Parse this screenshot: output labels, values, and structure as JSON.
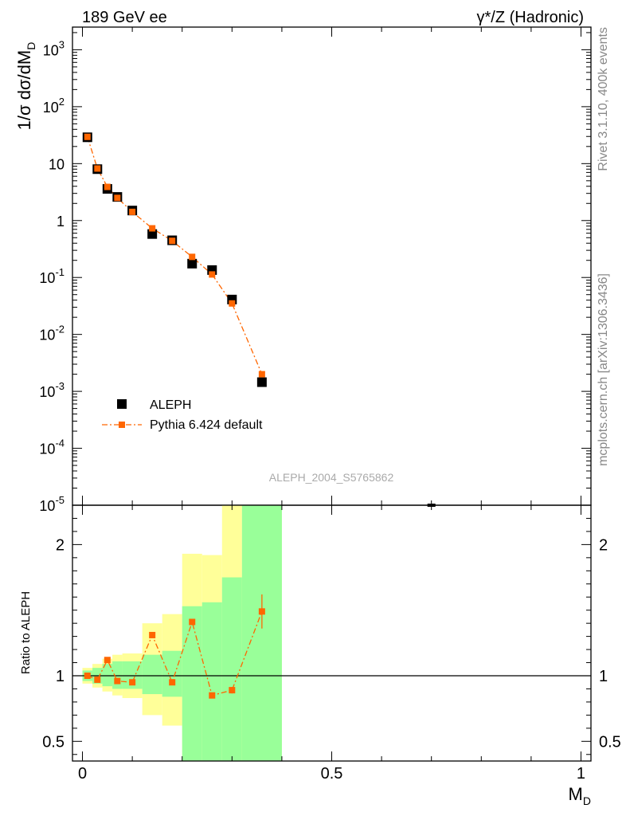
{
  "header": {
    "energy_label": "189 GeV ee",
    "process_label": "γ*/Z (Hadronic)"
  },
  "side_text": {
    "rivet": "Rivet 3.1.10,  400k events",
    "mcplots": "mcplots.cern.ch [arXiv:1306.3436]"
  },
  "watermark": "ALEPH_2004_S5765862",
  "colors": {
    "data": "#000000",
    "mc": "#ff6600",
    "band_inner": "#99ff99",
    "band_outer": "#ffff99"
  },
  "chart_data": [
    {
      "type": "scatter",
      "panel": "main",
      "ylabel": "1/σ  dσ/dM_D",
      "yscale": "log",
      "ylim": [
        1e-05,
        2500
      ],
      "xlim": [
        -0.02,
        1.02
      ],
      "y_tick_labels": [
        "10^3",
        "10^2",
        "10",
        "1",
        "10^-1",
        "10^-2",
        "10^-3",
        "10^-4",
        "10^-5"
      ],
      "legend_position": "bottom-left",
      "series": [
        {
          "name": "ALEPH",
          "marker": "square",
          "x": [
            0.01,
            0.03,
            0.05,
            0.07,
            0.1,
            0.14,
            0.18,
            0.22,
            0.26,
            0.3,
            0.36,
            0.7
          ],
          "y": [
            29,
            8.0,
            3.6,
            2.6,
            1.5,
            0.58,
            0.45,
            0.175,
            0.135,
            0.041,
            0.00145,
            1e-05
          ]
        },
        {
          "name": "Pythia 6.424 default",
          "marker": "square-dashdot",
          "x": [
            0.01,
            0.03,
            0.05,
            0.07,
            0.1,
            0.14,
            0.18,
            0.22,
            0.26,
            0.3,
            0.36
          ],
          "y": [
            29.5,
            8.2,
            3.9,
            2.5,
            1.42,
            0.73,
            0.44,
            0.23,
            0.113,
            0.035,
            0.002
          ]
        }
      ]
    },
    {
      "type": "scatter",
      "panel": "ratio",
      "ylabel": "Ratio to ALEPH",
      "xlabel": "M_D",
      "ylim": [
        0.35,
        2.3
      ],
      "xlim": [
        -0.02,
        1.02
      ],
      "y_ticks": [
        0.5,
        1,
        2
      ],
      "y_tick_labels": [
        "0.5",
        "1",
        "2"
      ],
      "x_ticks": [
        0,
        0.5,
        1
      ],
      "x_tick_labels": [
        "0",
        "0.5",
        "1"
      ],
      "reference_line": 1,
      "bands": [
        {
          "x0": 0.0,
          "x1": 0.02,
          "inner": [
            0.96,
            1.04
          ],
          "outer": [
            0.94,
            1.06
          ]
        },
        {
          "x0": 0.02,
          "x1": 0.04,
          "inner": [
            0.94,
            1.06
          ],
          "outer": [
            0.91,
            1.09
          ]
        },
        {
          "x0": 0.04,
          "x1": 0.06,
          "inner": [
            0.92,
            1.09
          ],
          "outer": [
            0.88,
            1.13
          ]
        },
        {
          "x0": 0.06,
          "x1": 0.08,
          "inner": [
            0.9,
            1.11
          ],
          "outer": [
            0.85,
            1.16
          ]
        },
        {
          "x0": 0.08,
          "x1": 0.12,
          "inner": [
            0.9,
            1.11
          ],
          "outer": [
            0.83,
            1.17
          ]
        },
        {
          "x0": 0.12,
          "x1": 0.16,
          "inner": [
            0.86,
            1.16
          ],
          "outer": [
            0.7,
            1.4
          ]
        },
        {
          "x0": 0.16,
          "x1": 0.2,
          "inner": [
            0.84,
            1.19
          ],
          "outer": [
            0.62,
            1.47
          ]
        },
        {
          "x0": 0.2,
          "x1": 0.24,
          "inner": [
            0.25,
            1.53
          ],
          "outer": [
            0.25,
            1.93
          ]
        },
        {
          "x0": 0.24,
          "x1": 0.28,
          "inner": [
            0.25,
            1.56
          ],
          "outer": [
            0.25,
            1.92
          ]
        },
        {
          "x0": 0.28,
          "x1": 0.32,
          "inner": [
            0.25,
            1.75
          ],
          "outer": [
            0.25,
            2.3
          ]
        },
        {
          "x0": 0.32,
          "x1": 0.4,
          "inner": [
            0.25,
            2.3
          ],
          "outer": [
            0.25,
            2.3
          ]
        }
      ],
      "series": [
        {
          "name": "Pythia 6.424 default",
          "x": [
            0.01,
            0.03,
            0.05,
            0.07,
            0.1,
            0.14,
            0.18,
            0.22,
            0.26,
            0.3,
            0.36
          ],
          "y": [
            1.0,
            0.97,
            1.12,
            0.96,
            0.95,
            1.31,
            0.95,
            1.41,
            0.85,
            0.89,
            1.49
          ],
          "yerr": [
            0.01,
            0.01,
            0.015,
            0.01,
            0.01,
            0.02,
            0.015,
            0.02,
            0.015,
            0.025,
            0.13
          ]
        }
      ]
    }
  ]
}
